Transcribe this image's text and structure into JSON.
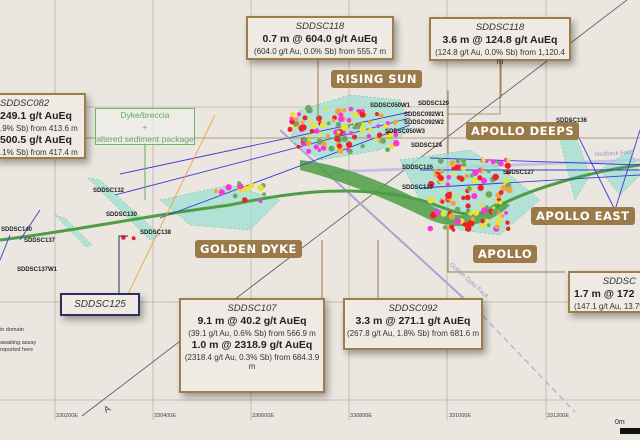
{
  "callouts": {
    "sddsc082": {
      "hole": "SDDSC082",
      "line1": "249.1 g/t AuEq",
      "sub1": ".9% Sb) from 413.6 m",
      "line2": "500.5 g/t AuEq",
      "sub2": ".1% Sb) from 417.4 m"
    },
    "sddsc118_a": {
      "hole": "SDDSC118",
      "main": "0.7 m @ 604.0 g/t AuEq",
      "sub": "(604.0 g/t Au, 0.0% Sb) from 555.7 m"
    },
    "sddsc118_b": {
      "hole": "SDDSC118",
      "main": "3.6 m @ 124.8 g/t AuEq",
      "sub": "(124.8 g/t Au, 0.0% Sb) from 1,120.4 m"
    },
    "sddsc107": {
      "hole": "SDDSC107",
      "main1": "9.1 m @ 40.2 g/t AuEq",
      "sub1": "(39.1 g/t Au, 0.6% Sb) from 566.9 m",
      "main2": "1.0 m @ 2318.9 g/t AuEq",
      "sub2": "(2318.4 g/t Au, 0.3% Sb) from 684.3.9 m"
    },
    "sddsc092": {
      "hole": "SDDSC092",
      "main": "3.3 m @ 271.1 g/t AuEq",
      "sub": "(267.8 g/t Au, 1.8% Sb) from 681.6 m"
    },
    "right": {
      "hole": "SDDSC",
      "main": "1.7 m @ 172",
      "sub": "(147.1 g/t Au, 13.7%"
    },
    "sddsc125": {
      "hole": "SDDSC125"
    }
  },
  "dyke_box": {
    "line1": "Dyke/breccia",
    "line2": "+",
    "line3": "altered sediment package"
  },
  "areas": {
    "rising_sun": "RISING SUN",
    "apollo_deeps": "APOLLO DEEPS",
    "apollo_east": "APOLLO EAST",
    "apollo": "APOLLO",
    "golden_dyke": "GOLDEN DYKE"
  },
  "holes": [
    "SDDSC050W1",
    "SDDSC129",
    "SDDSC092W1",
    "SDDSC092W2",
    "SDDSC050W3",
    "SDDSC124",
    "SDDSC126",
    "SDDSC127",
    "SDDSC139",
    "SDDSC136",
    "SDDSC132",
    "SDDSC130",
    "SDDSC138",
    "SDDSC140",
    "SDDSC137",
    "SDDSC137W1"
  ],
  "faults": {
    "redback": "Redback Fault",
    "golden_dyke": "Golden Dyke Fault"
  },
  "coords": [
    "330200E",
    "330400E",
    "330600E",
    "330800E",
    "331000E",
    "331200E"
  ],
  "legend": {
    "l1": "in domain",
    "l2": "awaiting assay",
    "l3": "reported here"
  },
  "section_label": "A",
  "scale_label": "0m",
  "colors": {
    "callout_border": "#a07c48",
    "area_label": "#9b7a4a",
    "dyke": "#4f9d45",
    "halo": "#9fe0d2",
    "drill": "#3b3bd6",
    "fault": "#a8a3d6",
    "high_grade": "#ee2222",
    "very_high": "#ff33dd",
    "mid": "#f2a23a",
    "low": "#e6e23a"
  }
}
